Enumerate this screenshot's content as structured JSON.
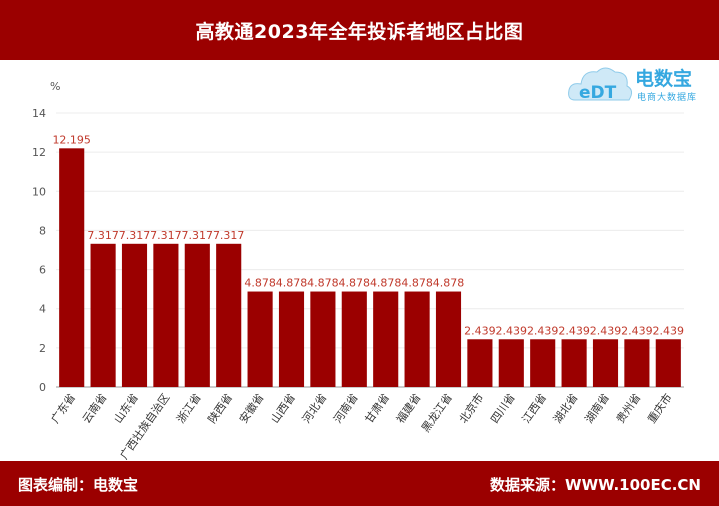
{
  "header": {
    "title": "高教通2023年全年投诉者地区占比图"
  },
  "footer": {
    "left": "图表编制：电数宝",
    "right": "数据来源：WWW.100EC.CN"
  },
  "logo": {
    "brand": "电数宝",
    "sub": "电商大数据库",
    "mark": "eDT"
  },
  "colors": {
    "bar": "#9b0000",
    "header_bg": "#9b0000",
    "label": "#c0392b"
  },
  "chart_data": {
    "type": "bar",
    "ylabel": "%",
    "ylim": [
      0,
      14
    ],
    "yticks": [
      0,
      2,
      4,
      6,
      8,
      10,
      12,
      14
    ],
    "categories": [
      "广东省",
      "云南省",
      "山东省",
      "广西壮族自治区",
      "浙江省",
      "陕西省",
      "安徽省",
      "山西省",
      "河北省",
      "河南省",
      "甘肃省",
      "福建省",
      "黑龙江省",
      "北京市",
      "四川省",
      "江西省",
      "湖北省",
      "湖南省",
      "贵州省",
      "重庆市"
    ],
    "values": [
      12.195,
      7.317,
      7.317,
      7.317,
      7.317,
      7.317,
      4.878,
      4.878,
      4.878,
      4.878,
      4.878,
      4.878,
      4.878,
      2.439,
      2.439,
      2.439,
      2.439,
      2.439,
      2.439,
      2.439
    ],
    "value_labels": [
      "12.195",
      "7.317",
      "7.317",
      "7.317",
      "7.317",
      "7.317",
      "4.878",
      "4.878",
      "4.878",
      "4.878",
      "4.878",
      "4.878",
      "4.878",
      "2.439",
      "2.439",
      "2.439",
      "2.439",
      "2.439",
      "2.439",
      "2.439"
    ],
    "grid": true
  }
}
